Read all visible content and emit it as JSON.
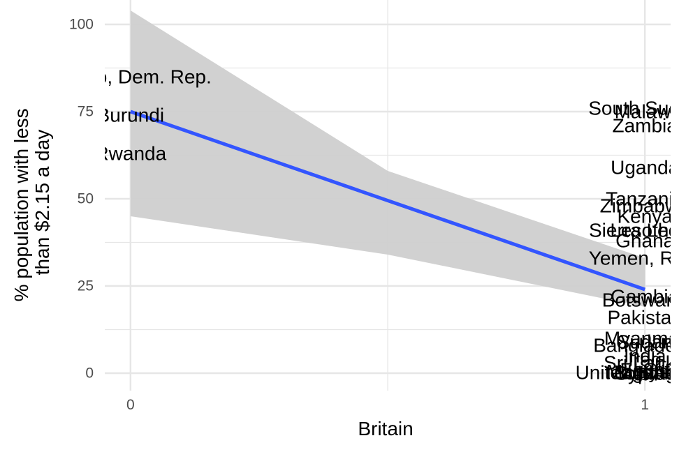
{
  "chart_data": {
    "type": "scatter",
    "xlabel": "Britain",
    "ylabel_lines": [
      "% population with less",
      "than $2.15 a day"
    ],
    "xlim": [
      -0.05,
      1.05
    ],
    "ylim": [
      -5,
      107
    ],
    "x_ticks": [
      "0",
      "1"
    ],
    "x_tick_values": [
      0,
      1
    ],
    "y_ticks": [
      "0",
      "25",
      "50",
      "75",
      "100"
    ],
    "y_tick_values": [
      0,
      25,
      50,
      75,
      100
    ],
    "grid": true,
    "colors": {
      "fit_line": "#3355ff",
      "ribbon": "#cfcfcf",
      "grid": "#e6e6e6"
    },
    "fit": {
      "x": [
        0,
        1
      ],
      "y": [
        75,
        24
      ]
    },
    "confidence_band": {
      "x": [
        0,
        0.5,
        1
      ],
      "upper": [
        104,
        58,
        33
      ],
      "lower": [
        45,
        34,
        19
      ]
    },
    "points": [
      {
        "label": "Congo, Dem. Rep.",
        "x": 0,
        "y": 85
      },
      {
        "label": "Burundi",
        "x": 0,
        "y": 74
      },
      {
        "label": "Rwanda",
        "x": 0,
        "y": 63
      },
      {
        "label": "South Sudan",
        "x": 1,
        "y": 76
      },
      {
        "label": "Malawi",
        "x": 1,
        "y": 75
      },
      {
        "label": "Zambia",
        "x": 1,
        "y": 71
      },
      {
        "label": "Uganda",
        "x": 1,
        "y": 59
      },
      {
        "label": "Tanzania",
        "x": 1,
        "y": 50
      },
      {
        "label": "Zimbabwe",
        "x": 1,
        "y": 48
      },
      {
        "label": "Kenya",
        "x": 1,
        "y": 45
      },
      {
        "label": "Sierra Leone",
        "x": 1,
        "y": 41
      },
      {
        "label": "Lesotho",
        "x": 1,
        "y": 41
      },
      {
        "label": "Ghana",
        "x": 1,
        "y": 38
      },
      {
        "label": "Yemen, Rep.",
        "x": 1,
        "y": 33
      },
      {
        "label": "Gambia",
        "x": 1,
        "y": 22
      },
      {
        "label": "Botswana",
        "x": 1,
        "y": 21
      },
      {
        "label": "Pakistan",
        "x": 1,
        "y": 16
      },
      {
        "label": "Myanmar",
        "x": 1,
        "y": 10
      },
      {
        "label": "Sudan",
        "x": 1,
        "y": 9
      },
      {
        "label": "Bangladesh",
        "x": 1,
        "y": 8
      },
      {
        "label": "India",
        "x": 1,
        "y": 5
      },
      {
        "label": "Iraq",
        "x": 1,
        "y": 4
      },
      {
        "label": "Sri Lanka",
        "x": 1,
        "y": 3
      },
      {
        "label": "Egypt",
        "x": 1,
        "y": 1
      },
      {
        "label": "Malaysia",
        "x": 1,
        "y": 0.5
      },
      {
        "label": "Nigeria",
        "x": 1,
        "y": 0.3
      },
      {
        "label": "United Kingdom",
        "x": 1,
        "y": 0.2
      },
      {
        "label": "Jordan",
        "x": 1,
        "y": 0.1
      },
      {
        "label": "Cyprus",
        "x": 1,
        "y": 0
      }
    ]
  }
}
